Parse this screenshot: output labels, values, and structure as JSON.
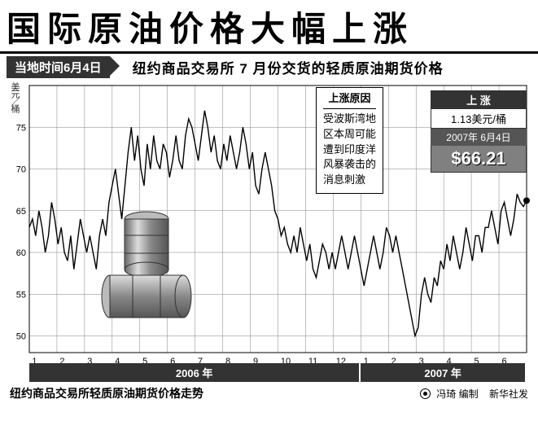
{
  "header": {
    "main_title": "国际原油价格大幅上涨",
    "date_badge": "当地时间6月4日",
    "subtitle": "纽约商品交易所 7 月份交货的轻质原油期货价格"
  },
  "chart": {
    "type": "line",
    "ylabel": "美元／桶",
    "ylim": [
      48,
      80
    ],
    "yticks": [
      50,
      55,
      60,
      65,
      70,
      75
    ],
    "xticks_2006": [
      "1",
      "2",
      "3",
      "4",
      "5",
      "6",
      "7",
      "8",
      "9",
      "10",
      "11",
      "12"
    ],
    "xticks_2007": [
      "1",
      "2",
      "3",
      "4",
      "5",
      "6"
    ],
    "year_segments": [
      {
        "label": "2006 年",
        "months": 12
      },
      {
        "label": "2007 年",
        "months": 6
      }
    ],
    "line_color": "#000000",
    "line_width": 1.4,
    "grid_color": "#808080",
    "grid_width": 0.5,
    "background_color": "#ffffff",
    "axis_fontsize": 11,
    "series": [
      63,
      64,
      62,
      65,
      63,
      60,
      62,
      66,
      64,
      61,
      63,
      60,
      59,
      62,
      58,
      61,
      64,
      62,
      60,
      62,
      60,
      58,
      62,
      64,
      62,
      66,
      68,
      70,
      67,
      64,
      68,
      72,
      75,
      71,
      74,
      70,
      68,
      73,
      70,
      74,
      71,
      70,
      73,
      72,
      69,
      71,
      74,
      71,
      70,
      74,
      76,
      75,
      73,
      71,
      74,
      77,
      75,
      72,
      74,
      71,
      70,
      73,
      71,
      74,
      72,
      70,
      72,
      75,
      73,
      70,
      72,
      68,
      67,
      70,
      72,
      70,
      68,
      65,
      64,
      62,
      63,
      61,
      60,
      62,
      60,
      63,
      61,
      59,
      61,
      58,
      57,
      59,
      61,
      60,
      58,
      60,
      58,
      60,
      62,
      60,
      58,
      60,
      62,
      60,
      58,
      56,
      58,
      60,
      62,
      60,
      58,
      60,
      63,
      62,
      60,
      62,
      60,
      58,
      56,
      54,
      52,
      50,
      51,
      55,
      57,
      55,
      54,
      57,
      56,
      59,
      58,
      61,
      59,
      62,
      60,
      58,
      60,
      63,
      61,
      59,
      62,
      62,
      60,
      63,
      63,
      65,
      63,
      61,
      65,
      66,
      64,
      62,
      64,
      67,
      66,
      65.5,
      66.2
    ],
    "end_marker": {
      "x_index": 156,
      "value": 66.21,
      "radius": 4,
      "color": "#000000"
    }
  },
  "reason_box": {
    "title": "上涨原因",
    "lines": [
      "受波斯湾地",
      "区本周可能",
      "遭到印度洋",
      "风暴袭击的",
      "消息刺激"
    ]
  },
  "price_card": {
    "head": "上 涨",
    "change": "1.13美元/桶",
    "date": "2007年 6月4日",
    "price": "$66.21"
  },
  "footer": {
    "caption": "纽约商品交易所轻质原油期货价格走势",
    "editor": "冯琦 编制",
    "source": "新华社发"
  },
  "colors": {
    "black": "#000000",
    "dark": "#333333",
    "mid": "#808080",
    "white": "#ffffff"
  }
}
